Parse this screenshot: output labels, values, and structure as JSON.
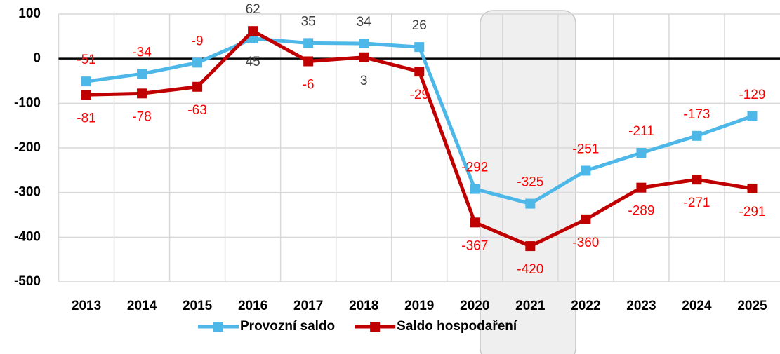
{
  "chart_data": {
    "type": "line",
    "categories": [
      "2013",
      "2014",
      "2015",
      "2016",
      "2017",
      "2018",
      "2019",
      "2020",
      "2021",
      "2022",
      "2023",
      "2024",
      "2025"
    ],
    "series": [
      {
        "name": "Provozní saldo",
        "color": "#4db8e8",
        "values": [
          -51,
          -34,
          -9,
          45,
          35,
          34,
          26,
          -292,
          -325,
          -251,
          -211,
          -173,
          -129
        ]
      },
      {
        "name": "Saldo hospodaření",
        "color": "#c00000",
        "values": [
          -81,
          -78,
          -63,
          62,
          -6,
          3,
          -29,
          -367,
          -420,
          -360,
          -289,
          -271,
          -291
        ]
      }
    ],
    "ylim": [
      -500,
      100
    ],
    "yticks": [
      -500,
      -400,
      -300,
      -200,
      -100,
      0,
      100
    ],
    "grid": true,
    "legend": "bottom",
    "negative_label_color": "#ff0000",
    "positive_label_color": "#404040"
  }
}
